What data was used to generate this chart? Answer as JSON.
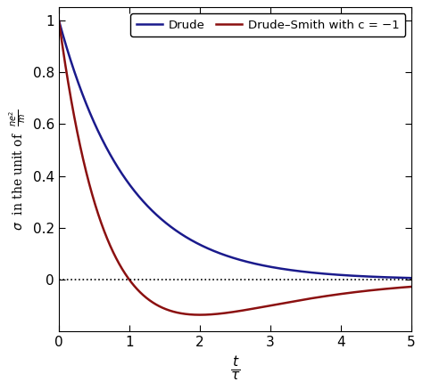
{
  "legend_drude": "Drude",
  "legend_ds": "Drude–Smith with c = −1",
  "drude_color": "#1a1a8c",
  "ds_color": "#8B1010",
  "background_color": "#ffffff",
  "xlim": [
    0,
    5
  ],
  "ylim": [
    -0.2,
    1.05
  ],
  "yticks": [
    0.0,
    0.2,
    0.4,
    0.6,
    0.8,
    1.0
  ],
  "xticks": [
    0,
    1,
    2,
    3,
    4,
    5
  ],
  "t_max": 5.0,
  "n_points": 2000,
  "c": -1,
  "line_width": 1.8
}
